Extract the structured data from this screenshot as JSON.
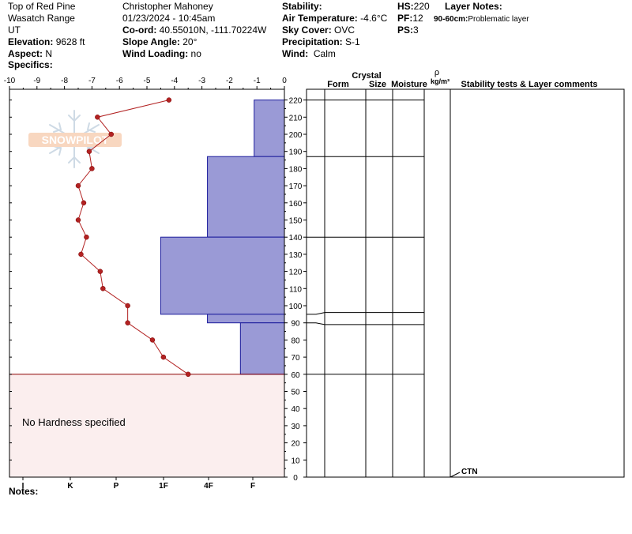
{
  "header": {
    "location": "Top of Red Pine",
    "range": "Wasatch Range",
    "state": "UT",
    "elevation_label": "Elevation:",
    "elevation": "9628 ft",
    "aspect_label": "Aspect:",
    "aspect": "N",
    "specifics_label": "Specifics:",
    "observer": "Christopher Mahoney",
    "datetime": "01/23/2024 - 10:45am",
    "coord_label": "Co-ord:",
    "coord": "40.55010N, -111.70224W",
    "slope_label": "Slope Angle:",
    "slope": "20°",
    "wind_loading_label": "Wind Loading:",
    "wind_loading": "no",
    "stability_label": "Stability:",
    "air_temp_label": "Air Temperature:",
    "air_temp": "-4.6°C",
    "sky_label": "Sky Cover:",
    "sky": "OVC",
    "precip_label": "Precipitation:",
    "precip": "S-1",
    "wind_label": "Wind:",
    "wind": "Calm",
    "hs_label": "HS:",
    "hs": "220",
    "pf_label": "PF:",
    "pf": "12",
    "ps_label": "PS:",
    "ps": "3",
    "layer_notes_label": "Layer Notes:",
    "layer_note_depth": "90-60cm:",
    "layer_note_text": "Problematic layer",
    "notes_label": "Notes:"
  },
  "watermark": "SNOWPILOT",
  "chart_data": {
    "type": "snow-profile",
    "temperature_axis": {
      "ticks": [
        -10,
        -9,
        -8,
        -7,
        -6,
        -5,
        -4,
        -3,
        -2,
        -1,
        0
      ],
      "range": [
        -10,
        0
      ]
    },
    "height_axis": {
      "ticks": [
        0,
        10,
        20,
        30,
        40,
        50,
        60,
        70,
        80,
        90,
        100,
        110,
        120,
        130,
        140,
        150,
        160,
        170,
        180,
        190,
        200,
        210,
        220
      ],
      "range": [
        0,
        225
      ]
    },
    "hardness_labels": [
      "I",
      "K",
      "P",
      "1F",
      "4F",
      "F"
    ],
    "temperature_profile": [
      {
        "height": 220,
        "temp": -4.2
      },
      {
        "height": 210,
        "temp": -6.8
      },
      {
        "height": 200,
        "temp": -6.3
      },
      {
        "height": 190,
        "temp": -7.1
      },
      {
        "height": 180,
        "temp": -7.0
      },
      {
        "height": 170,
        "temp": -7.5
      },
      {
        "height": 160,
        "temp": -7.3
      },
      {
        "height": 150,
        "temp": -7.5
      },
      {
        "height": 140,
        "temp": -7.2
      },
      {
        "height": 130,
        "temp": -7.4
      },
      {
        "height": 120,
        "temp": -6.7
      },
      {
        "height": 110,
        "temp": -6.6
      },
      {
        "height": 100,
        "temp": -5.7
      },
      {
        "height": 90,
        "temp": -5.7
      },
      {
        "height": 80,
        "temp": -4.8
      },
      {
        "height": 70,
        "temp": -4.4
      },
      {
        "height": 60,
        "temp": -3.5
      }
    ],
    "hardness_layers": [
      {
        "top": 220,
        "bottom": 187,
        "value": -1.1
      },
      {
        "top": 187,
        "bottom": 140,
        "value": -2.8
      },
      {
        "top": 140,
        "bottom": 95,
        "value": -4.5
      },
      {
        "top": 95,
        "bottom": 90,
        "value": -2.8
      },
      {
        "top": 90,
        "bottom": 60,
        "value": -1.6
      }
    ],
    "no_hardness_text": "No Hardness specified",
    "no_hardness_range": [
      0,
      60
    ],
    "layer_boundaries": [
      {
        "left": 220,
        "right": 220
      },
      {
        "left": 187,
        "right": 187
      },
      {
        "left": 140,
        "right": 140
      },
      {
        "left": 95,
        "right": 96
      },
      {
        "left": 90,
        "right": 89
      },
      {
        "left": 60,
        "right": 60
      }
    ],
    "table_headers": {
      "crystal": "Crystal",
      "form": "Form",
      "size": "Size",
      "moisture": "Moisture",
      "rho": "ρ",
      "density_unit": "kg/m³",
      "stability": "Stability tests & Layer comments"
    },
    "stability_test": {
      "height": 0,
      "label": "CTN"
    },
    "colors": {
      "hardness_fill": "#9a9ad6",
      "hardness_stroke": "#1c1c9c",
      "temp_line": "#b22222",
      "no_hardness_fill": "#fbeeee"
    }
  }
}
